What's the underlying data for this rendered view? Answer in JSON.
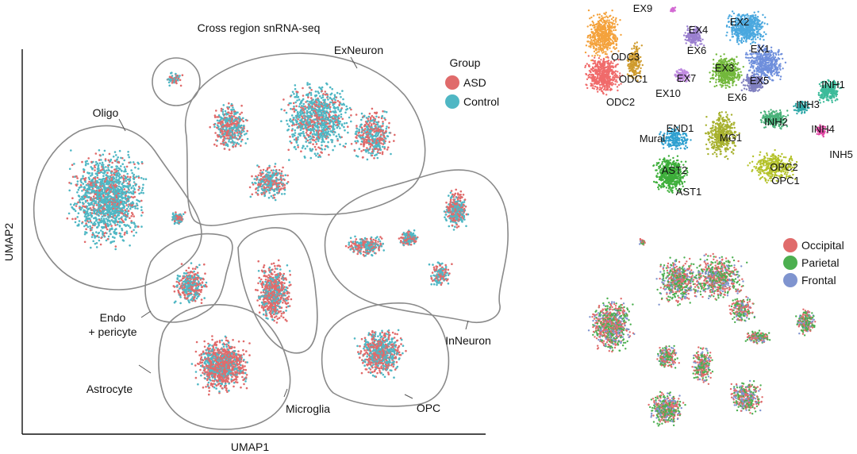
{
  "main_plot": {
    "title": "Cross region snRNA-seq",
    "xlabel": "UMAP1",
    "ylabel": "UMAP2",
    "legend": {
      "title": "Group",
      "items": [
        {
          "label": "ASD",
          "color": "#e06b6b"
        },
        {
          "label": "Control",
          "color": "#4fb7c4"
        }
      ]
    },
    "region_labels": {
      "exneuron": "ExNeuron",
      "oligo": "Oligo",
      "endo1": "Endo",
      "endo2": "+ pericyte",
      "astrocyte": "Astrocyte",
      "microglia": "Microglia",
      "opc": "OPC",
      "inneuron": "InNeuron"
    }
  },
  "cluster_plot": {
    "labels": [
      "EX9",
      "EX4",
      "EX2",
      "EX6",
      "EX1",
      "EX3",
      "ODC3",
      "ODC1",
      "EX7",
      "EX5",
      "ODC2",
      "EX10",
      "EX6",
      "INH1",
      "INH3",
      "INH2",
      "INH4",
      "INH5",
      "END1",
      "Mural",
      "MG1",
      "AST2",
      "AST1",
      "OPC2",
      "OPC1"
    ]
  },
  "region_plot": {
    "legend": [
      {
        "label": "Occipital",
        "color": "#e06b6b"
      },
      {
        "label": "Parietal",
        "color": "#4caf50"
      },
      {
        "label": "Frontal",
        "color": "#7f94cf"
      }
    ]
  },
  "colors": {
    "asd": "#e06b6b",
    "control": "#4fb7c4",
    "outline": "#8a8a8a"
  },
  "chart_data": [
    {
      "type": "scatter",
      "title": "Cross region snRNA-seq",
      "xlabel": "UMAP1",
      "ylabel": "UMAP2",
      "grid": false,
      "legend_position": "top-right",
      "series": [
        {
          "name": "ASD",
          "color": "#e06b6b"
        },
        {
          "name": "Control",
          "color": "#4fb7c4"
        }
      ],
      "annotations": [
        "ExNeuron",
        "Oligo",
        "Endo + pericyte",
        "Astrocyte",
        "Microglia",
        "OPC",
        "InNeuron"
      ]
    },
    {
      "type": "scatter",
      "grid": false,
      "annotations": [
        "EX9",
        "EX4",
        "EX2",
        "EX6",
        "EX1",
        "EX3",
        "ODC3",
        "ODC1",
        "EX7",
        "EX5",
        "ODC2",
        "EX10",
        "EX6",
        "INH1",
        "INH3",
        "INH2",
        "INH4",
        "INH5",
        "END1",
        "Mural",
        "MG1",
        "AST2",
        "AST1",
        "OPC2",
        "OPC1"
      ]
    },
    {
      "type": "scatter",
      "grid": false,
      "legend_position": "top-right",
      "series": [
        {
          "name": "Occipital",
          "color": "#e06b6b"
        },
        {
          "name": "Parietal",
          "color": "#4caf50"
        },
        {
          "name": "Frontal",
          "color": "#7f94cf"
        }
      ]
    }
  ]
}
